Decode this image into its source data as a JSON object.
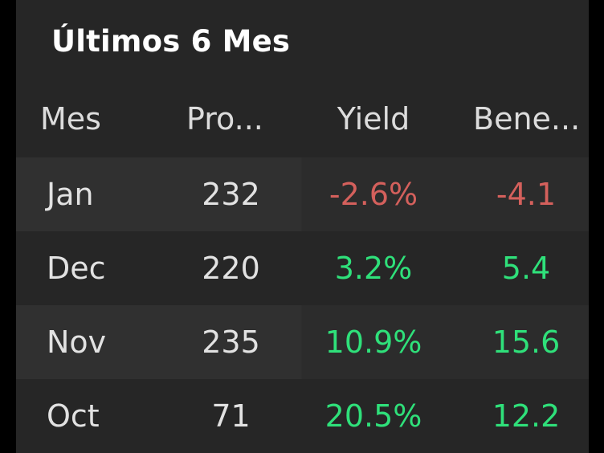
{
  "title": "Últimos 6 Mes",
  "columns": {
    "month": "Mes",
    "production": "Pro...",
    "yield": "Yield",
    "benefit": "Bene..."
  },
  "rows": [
    {
      "month": "Jan",
      "production": "232",
      "yield": "-2.6%",
      "benefit": "-4.1",
      "trend": "negative"
    },
    {
      "month": "Dec",
      "production": "220",
      "yield": "3.2%",
      "benefit": "5.4",
      "trend": "positive"
    },
    {
      "month": "Nov",
      "production": "235",
      "yield": "10.9%",
      "benefit": "15.6",
      "trend": "positive"
    },
    {
      "month": "Oct",
      "production": "71",
      "yield": "20.5%",
      "benefit": "12.2",
      "trend": "positive"
    }
  ],
  "colors": {
    "background": "#262626",
    "positive": "#2fe07a",
    "negative": "#d4605c",
    "text": "#e2e2e2"
  }
}
